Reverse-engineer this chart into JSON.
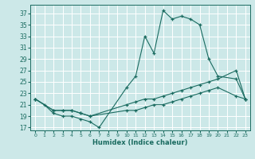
{
  "xlabel": "Humidex (Indice chaleur)",
  "bg_color": "#cce8e8",
  "line_color": "#1a6b60",
  "grid_color": "#ffffff",
  "xlim": [
    -0.5,
    23.5
  ],
  "ylim": [
    16.5,
    38.5
  ],
  "yticks": [
    17,
    19,
    21,
    23,
    25,
    27,
    29,
    31,
    33,
    35,
    37
  ],
  "xticks": [
    0,
    1,
    2,
    3,
    4,
    5,
    6,
    7,
    8,
    9,
    10,
    11,
    12,
    13,
    14,
    15,
    16,
    17,
    18,
    19,
    20,
    21,
    22,
    23
  ],
  "line1_x": [
    0,
    1,
    2,
    3,
    4,
    5,
    6,
    7,
    10,
    11,
    12,
    13,
    14,
    15,
    16,
    17,
    18,
    19,
    20,
    22,
    23
  ],
  "line1_y": [
    22,
    21,
    19.5,
    19,
    19,
    18.5,
    18,
    17,
    24,
    26,
    33,
    30,
    37.5,
    36,
    36.5,
    36,
    35,
    29,
    26,
    25.5,
    22
  ],
  "line2_x": [
    0,
    2,
    3,
    4,
    5,
    6,
    10,
    11,
    12,
    13,
    14,
    15,
    16,
    17,
    18,
    19,
    20,
    22,
    23
  ],
  "line2_y": [
    22,
    20,
    20,
    20,
    19.5,
    19,
    21,
    21.5,
    22,
    22,
    22.5,
    23,
    23.5,
    24,
    24.5,
    25,
    25.5,
    27,
    22
  ],
  "line3_x": [
    0,
    2,
    3,
    4,
    5,
    6,
    10,
    11,
    12,
    13,
    14,
    15,
    16,
    17,
    18,
    19,
    20,
    22,
    23
  ],
  "line3_y": [
    22,
    20,
    20,
    20,
    19.5,
    19,
    20,
    20,
    20.5,
    21,
    21,
    21.5,
    22,
    22.5,
    23,
    23.5,
    24,
    22.5,
    22
  ]
}
